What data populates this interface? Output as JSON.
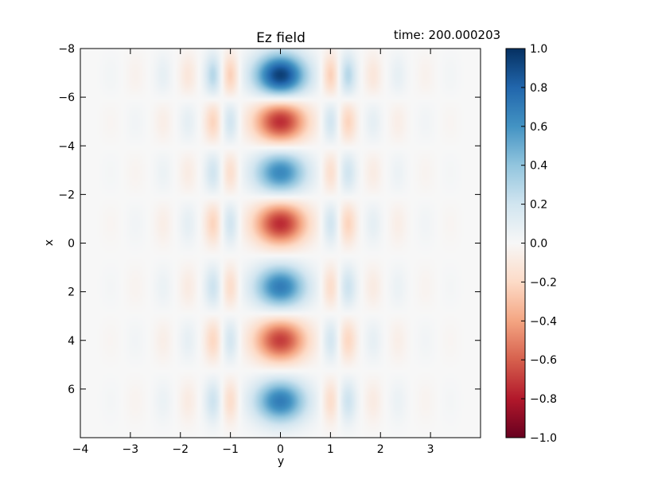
{
  "figure": {
    "title": "Ez field",
    "time_label": "time: 200.000203"
  },
  "chart_data": {
    "type": "heatmap",
    "title": "Ez field",
    "annotation": "time: 200.000203",
    "xlabel": "y",
    "ylabel": "x",
    "xlim": [
      -4,
      4
    ],
    "ylim": [
      8,
      -8
    ],
    "x_ticks": [
      -4,
      -3,
      -2,
      -1,
      0,
      1,
      2,
      3
    ],
    "x_tick_labels": [
      "−4",
      "−3",
      "−2",
      "−1",
      "0",
      "1",
      "2",
      "3"
    ],
    "y_ticks": [
      -8,
      -6,
      -4,
      -2,
      0,
      2,
      4,
      6
    ],
    "y_tick_labels": [
      "−8",
      "−6",
      "−4",
      "−2",
      "0",
      "2",
      "4",
      "6"
    ],
    "colormap": "RdBu",
    "colorbar": {
      "range": [
        -1.0,
        1.0
      ],
      "ticks": [
        -1.0,
        -0.8,
        -0.6,
        -0.4,
        -0.2,
        0.0,
        0.2,
        0.4,
        0.6,
        0.8,
        1.0
      ],
      "tick_labels": [
        "−1.0",
        "−0.8",
        "−0.6",
        "−0.4",
        "−0.2",
        "0.0",
        "0.2",
        "0.4",
        "0.6",
        "0.8",
        "1.0"
      ],
      "colors": [
        "#67001f",
        "#b2182b",
        "#d6604d",
        "#f4a582",
        "#fddbc7",
        "#f7f7f7",
        "#d1e5f0",
        "#92c5de",
        "#4393c3",
        "#2166ac",
        "#053061"
      ]
    },
    "field_lobes": [
      {
        "x": 0,
        "y": -6.9,
        "value": 0.95
      },
      {
        "x": 0,
        "y": -5.0,
        "value": -0.75
      },
      {
        "x": 0,
        "y": -2.9,
        "value": 0.65
      },
      {
        "x": 0,
        "y": -0.8,
        "value": -0.75
      },
      {
        "x": 0,
        "y": 1.8,
        "value": 0.7
      },
      {
        "x": 0,
        "y": 4.0,
        "value": -0.7
      },
      {
        "x": 0,
        "y": 6.5,
        "value": 0.7
      }
    ],
    "grid": false
  }
}
